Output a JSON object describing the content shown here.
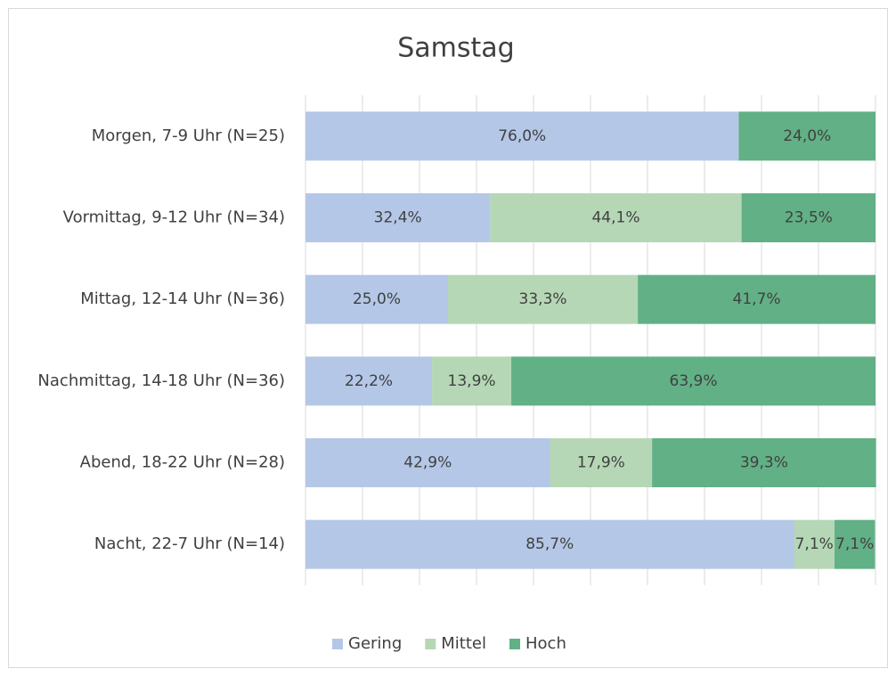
{
  "chart_data": {
    "type": "stacked-bar-horizontal",
    "title": "Samstag",
    "categories": [
      "Morgen, 7-9 Uhr (N=25)",
      "Vormittag, 9-12 Uhr (N=34)",
      "Mittag, 12-14 Uhr (N=36)",
      "Nachmittag, 14-18 Uhr (N=36)",
      "Abend, 18-22 Uhr (N=28)",
      "Nacht, 22-7 Uhr (N=14)"
    ],
    "series": [
      {
        "name": "Gering",
        "color": "#b4c7e7",
        "values": [
          76.0,
          32.4,
          25.0,
          22.2,
          42.9,
          85.7
        ],
        "value_labels": [
          "76,0%",
          "32,4%",
          "25,0%",
          "22,2%",
          "42,9%",
          "85,7%"
        ]
      },
      {
        "name": "Mittel",
        "color": "#b5d7b5",
        "values": [
          0,
          44.1,
          33.3,
          13.9,
          17.9,
          7.1
        ],
        "value_labels": [
          null,
          "44,1%",
          "33,3%",
          "13,9%",
          "17,9%",
          "7,1%"
        ]
      },
      {
        "name": "Hoch",
        "color": "#62b086",
        "values": [
          24.0,
          23.5,
          41.7,
          63.9,
          39.3,
          7.1
        ],
        "value_labels": [
          "24,0%",
          "23,5%",
          "41,7%",
          "63,9%",
          "39,3%",
          "7,1%"
        ]
      }
    ],
    "xlim": [
      0,
      100
    ],
    "xticks": [
      0,
      10,
      20,
      30,
      40,
      50,
      60,
      70,
      80,
      90,
      100
    ],
    "grid": true,
    "legend": "bottom"
  }
}
